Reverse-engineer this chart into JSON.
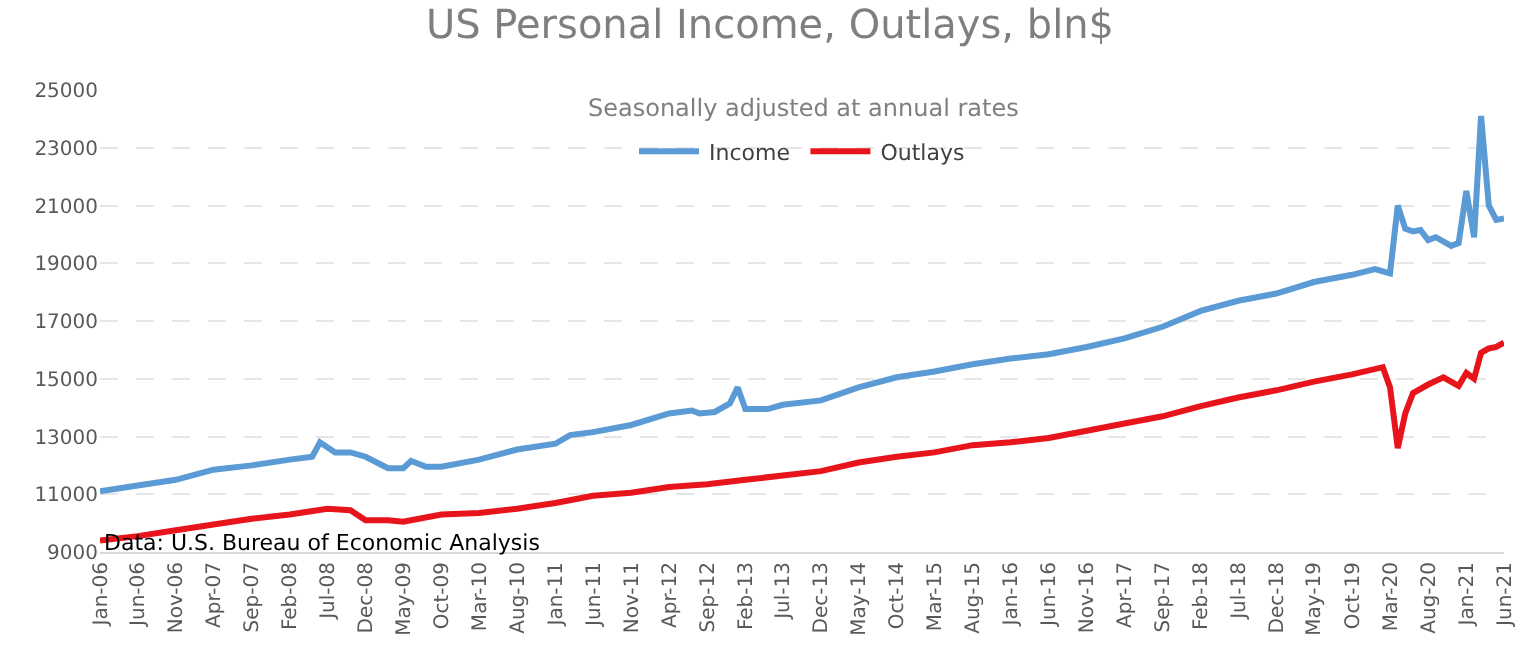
{
  "chart_data": {
    "type": "line",
    "title": "US Personal Income, Outlays, bln$",
    "subtitle": "Seasonally adjusted at annual rates",
    "annotations": [
      "Data: U.S. Bureau of Economic Analysis"
    ],
    "series": [
      {
        "name": "Income",
        "color": "#5b9bd5",
        "x": [
          "2006-01",
          "2006-06",
          "2006-11",
          "2007-04",
          "2007-09",
          "2008-02",
          "2008-05",
          "2008-06",
          "2008-08",
          "2008-10",
          "2008-12",
          "2009-03",
          "2009-05",
          "2009-06",
          "2009-08",
          "2009-10",
          "2010-03",
          "2010-08",
          "2011-01",
          "2011-03",
          "2011-06",
          "2011-11",
          "2012-04",
          "2012-07",
          "2012-08",
          "2012-10",
          "2012-12",
          "2013-01",
          "2013-02",
          "2013-05",
          "2013-07",
          "2013-12",
          "2014-05",
          "2014-10",
          "2015-03",
          "2015-08",
          "2016-01",
          "2016-06",
          "2016-11",
          "2017-04",
          "2017-09",
          "2018-02",
          "2018-07",
          "2018-12",
          "2019-05",
          "2019-10",
          "2020-01",
          "2020-03",
          "2020-04",
          "2020-05",
          "2020-06",
          "2020-07",
          "2020-08",
          "2020-09",
          "2020-11",
          "2020-12",
          "2021-01",
          "2021-02",
          "2021-03",
          "2021-04",
          "2021-05",
          "2021-06"
        ],
        "values": [
          11100,
          11300,
          11500,
          11850,
          12000,
          12200,
          12300,
          12800,
          12450,
          12450,
          12300,
          11900,
          11900,
          12150,
          11950,
          11950,
          12200,
          12550,
          12750,
          13050,
          13150,
          13400,
          13800,
          13900,
          13800,
          13850,
          14150,
          14700,
          13950,
          13950,
          14100,
          14250,
          14700,
          15050,
          15250,
          15500,
          15700,
          15850,
          16100,
          16400,
          16800,
          17350,
          17700,
          17950,
          18350,
          18600,
          18800,
          18650,
          21000,
          20200,
          20100,
          20150,
          19800,
          19900,
          19600,
          19700,
          21500,
          19900,
          24100,
          21000,
          20500,
          20550
        ]
      },
      {
        "name": "Outlays",
        "color": "#e8141b",
        "x": [
          "2006-01",
          "2006-06",
          "2006-11",
          "2007-04",
          "2007-09",
          "2008-02",
          "2008-07",
          "2008-10",
          "2008-12",
          "2009-03",
          "2009-05",
          "2009-10",
          "2010-03",
          "2010-08",
          "2011-01",
          "2011-06",
          "2011-11",
          "2012-04",
          "2012-09",
          "2013-02",
          "2013-07",
          "2013-12",
          "2014-05",
          "2014-10",
          "2015-03",
          "2015-08",
          "2016-01",
          "2016-06",
          "2016-11",
          "2017-04",
          "2017-09",
          "2018-02",
          "2018-07",
          "2018-12",
          "2019-05",
          "2019-10",
          "2020-02",
          "2020-03",
          "2020-04",
          "2020-05",
          "2020-06",
          "2020-08",
          "2020-10",
          "2020-12",
          "2021-01",
          "2021-02",
          "2021-03",
          "2021-04",
          "2021-05",
          "2021-06"
        ],
        "values": [
          9400,
          9550,
          9750,
          9950,
          10150,
          10300,
          10500,
          10450,
          10100,
          10100,
          10050,
          10300,
          10350,
          10500,
          10700,
          10950,
          11050,
          11250,
          11350,
          11500,
          11650,
          11800,
          12100,
          12300,
          12450,
          12700,
          12800,
          12950,
          13200,
          13450,
          13700,
          14050,
          14350,
          14600,
          14900,
          15150,
          15400,
          14700,
          12600,
          13800,
          14500,
          14800,
          15050,
          14750,
          15200,
          15000,
          15900,
          16050,
          16100,
          16250
        ]
      }
    ],
    "xlim": [
      "2006-01",
      "2021-06"
    ],
    "xticks": [
      {
        "value": "2006-01",
        "label": "Jan-06"
      },
      {
        "value": "2006-06",
        "label": "Jun-06"
      },
      {
        "value": "2006-11",
        "label": "Nov-06"
      },
      {
        "value": "2007-04",
        "label": "Apr-07"
      },
      {
        "value": "2007-09",
        "label": "Sep-07"
      },
      {
        "value": "2008-02",
        "label": "Feb-08"
      },
      {
        "value": "2008-07",
        "label": "Jul-08"
      },
      {
        "value": "2008-12",
        "label": "Dec-08"
      },
      {
        "value": "2009-05",
        "label": "May-09"
      },
      {
        "value": "2009-10",
        "label": "Oct-09"
      },
      {
        "value": "2010-03",
        "label": "Mar-10"
      },
      {
        "value": "2010-08",
        "label": "Aug-10"
      },
      {
        "value": "2011-01",
        "label": "Jan-11"
      },
      {
        "value": "2011-06",
        "label": "Jun-11"
      },
      {
        "value": "2011-11",
        "label": "Nov-11"
      },
      {
        "value": "2012-04",
        "label": "Apr-12"
      },
      {
        "value": "2012-09",
        "label": "Sep-12"
      },
      {
        "value": "2013-02",
        "label": "Feb-13"
      },
      {
        "value": "2013-07",
        "label": "Jul-13"
      },
      {
        "value": "2013-12",
        "label": "Dec-13"
      },
      {
        "value": "2014-05",
        "label": "May-14"
      },
      {
        "value": "2014-10",
        "label": "Oct-14"
      },
      {
        "value": "2015-03",
        "label": "Mar-15"
      },
      {
        "value": "2015-08",
        "label": "Aug-15"
      },
      {
        "value": "2016-01",
        "label": "Jan-16"
      },
      {
        "value": "2016-06",
        "label": "Jun-16"
      },
      {
        "value": "2016-11",
        "label": "Nov-16"
      },
      {
        "value": "2017-04",
        "label": "Apr-17"
      },
      {
        "value": "2017-09",
        "label": "Sep-17"
      },
      {
        "value": "2018-02",
        "label": "Feb-18"
      },
      {
        "value": "2018-07",
        "label": "Jul-18"
      },
      {
        "value": "2018-12",
        "label": "Dec-18"
      },
      {
        "value": "2019-05",
        "label": "May-19"
      },
      {
        "value": "2019-10",
        "label": "Oct-19"
      },
      {
        "value": "2020-03",
        "label": "Mar-20"
      },
      {
        "value": "2020-08",
        "label": "Aug-20"
      },
      {
        "value": "2021-01",
        "label": "Jan-21"
      },
      {
        "value": "2021-06",
        "label": "Jun-21"
      }
    ],
    "ylim": [
      9000,
      25000
    ],
    "yticks": [
      9000,
      11000,
      13000,
      15000,
      17000,
      19000,
      21000,
      23000,
      25000
    ],
    "grid": "y",
    "legend": "top",
    "marker": "none",
    "line_style": "solid"
  }
}
